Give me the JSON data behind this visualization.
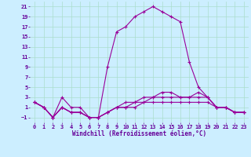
{
  "background_color": "#cceeff",
  "line_color": "#990099",
  "marker": "+",
  "markersize": 3,
  "linewidth": 0.8,
  "markeredgewidth": 0.8,
  "xlabel": "Windchill (Refroidissement éolien,°C)",
  "xlabel_fontsize": 5.5,
  "xlabel_color": "#660099",
  "tick_color": "#660099",
  "tick_fontsize": 5.0,
  "grid_color": "#aaddcc",
  "xlim": [
    -0.5,
    23.5
  ],
  "ylim": [
    -2,
    22
  ],
  "yticks": [
    -1,
    1,
    3,
    5,
    7,
    9,
    11,
    13,
    15,
    17,
    19,
    21
  ],
  "xticks": [
    0,
    1,
    2,
    3,
    4,
    5,
    6,
    7,
    8,
    9,
    10,
    11,
    12,
    13,
    14,
    15,
    16,
    17,
    18,
    19,
    20,
    21,
    22,
    23
  ],
  "series": [
    [
      2,
      1,
      -1,
      3,
      1,
      1,
      -1,
      -1,
      9,
      16,
      17,
      19,
      20,
      21,
      20,
      19,
      18,
      10,
      5,
      3,
      1,
      1,
      0,
      0
    ],
    [
      2,
      1,
      -1,
      1,
      0,
      0,
      -1,
      -1,
      0,
      1,
      1,
      1,
      2,
      2,
      2,
      2,
      2,
      2,
      2,
      2,
      1,
      1,
      0,
      0
    ],
    [
      2,
      1,
      -1,
      1,
      0,
      0,
      -1,
      -1,
      0,
      1,
      1,
      2,
      2,
      3,
      3,
      3,
      3,
      3,
      3,
      3,
      1,
      1,
      0,
      0
    ],
    [
      2,
      1,
      -1,
      1,
      0,
      0,
      -1,
      -1,
      0,
      1,
      2,
      2,
      3,
      3,
      4,
      4,
      3,
      3,
      4,
      3,
      1,
      1,
      0,
      0
    ]
  ]
}
